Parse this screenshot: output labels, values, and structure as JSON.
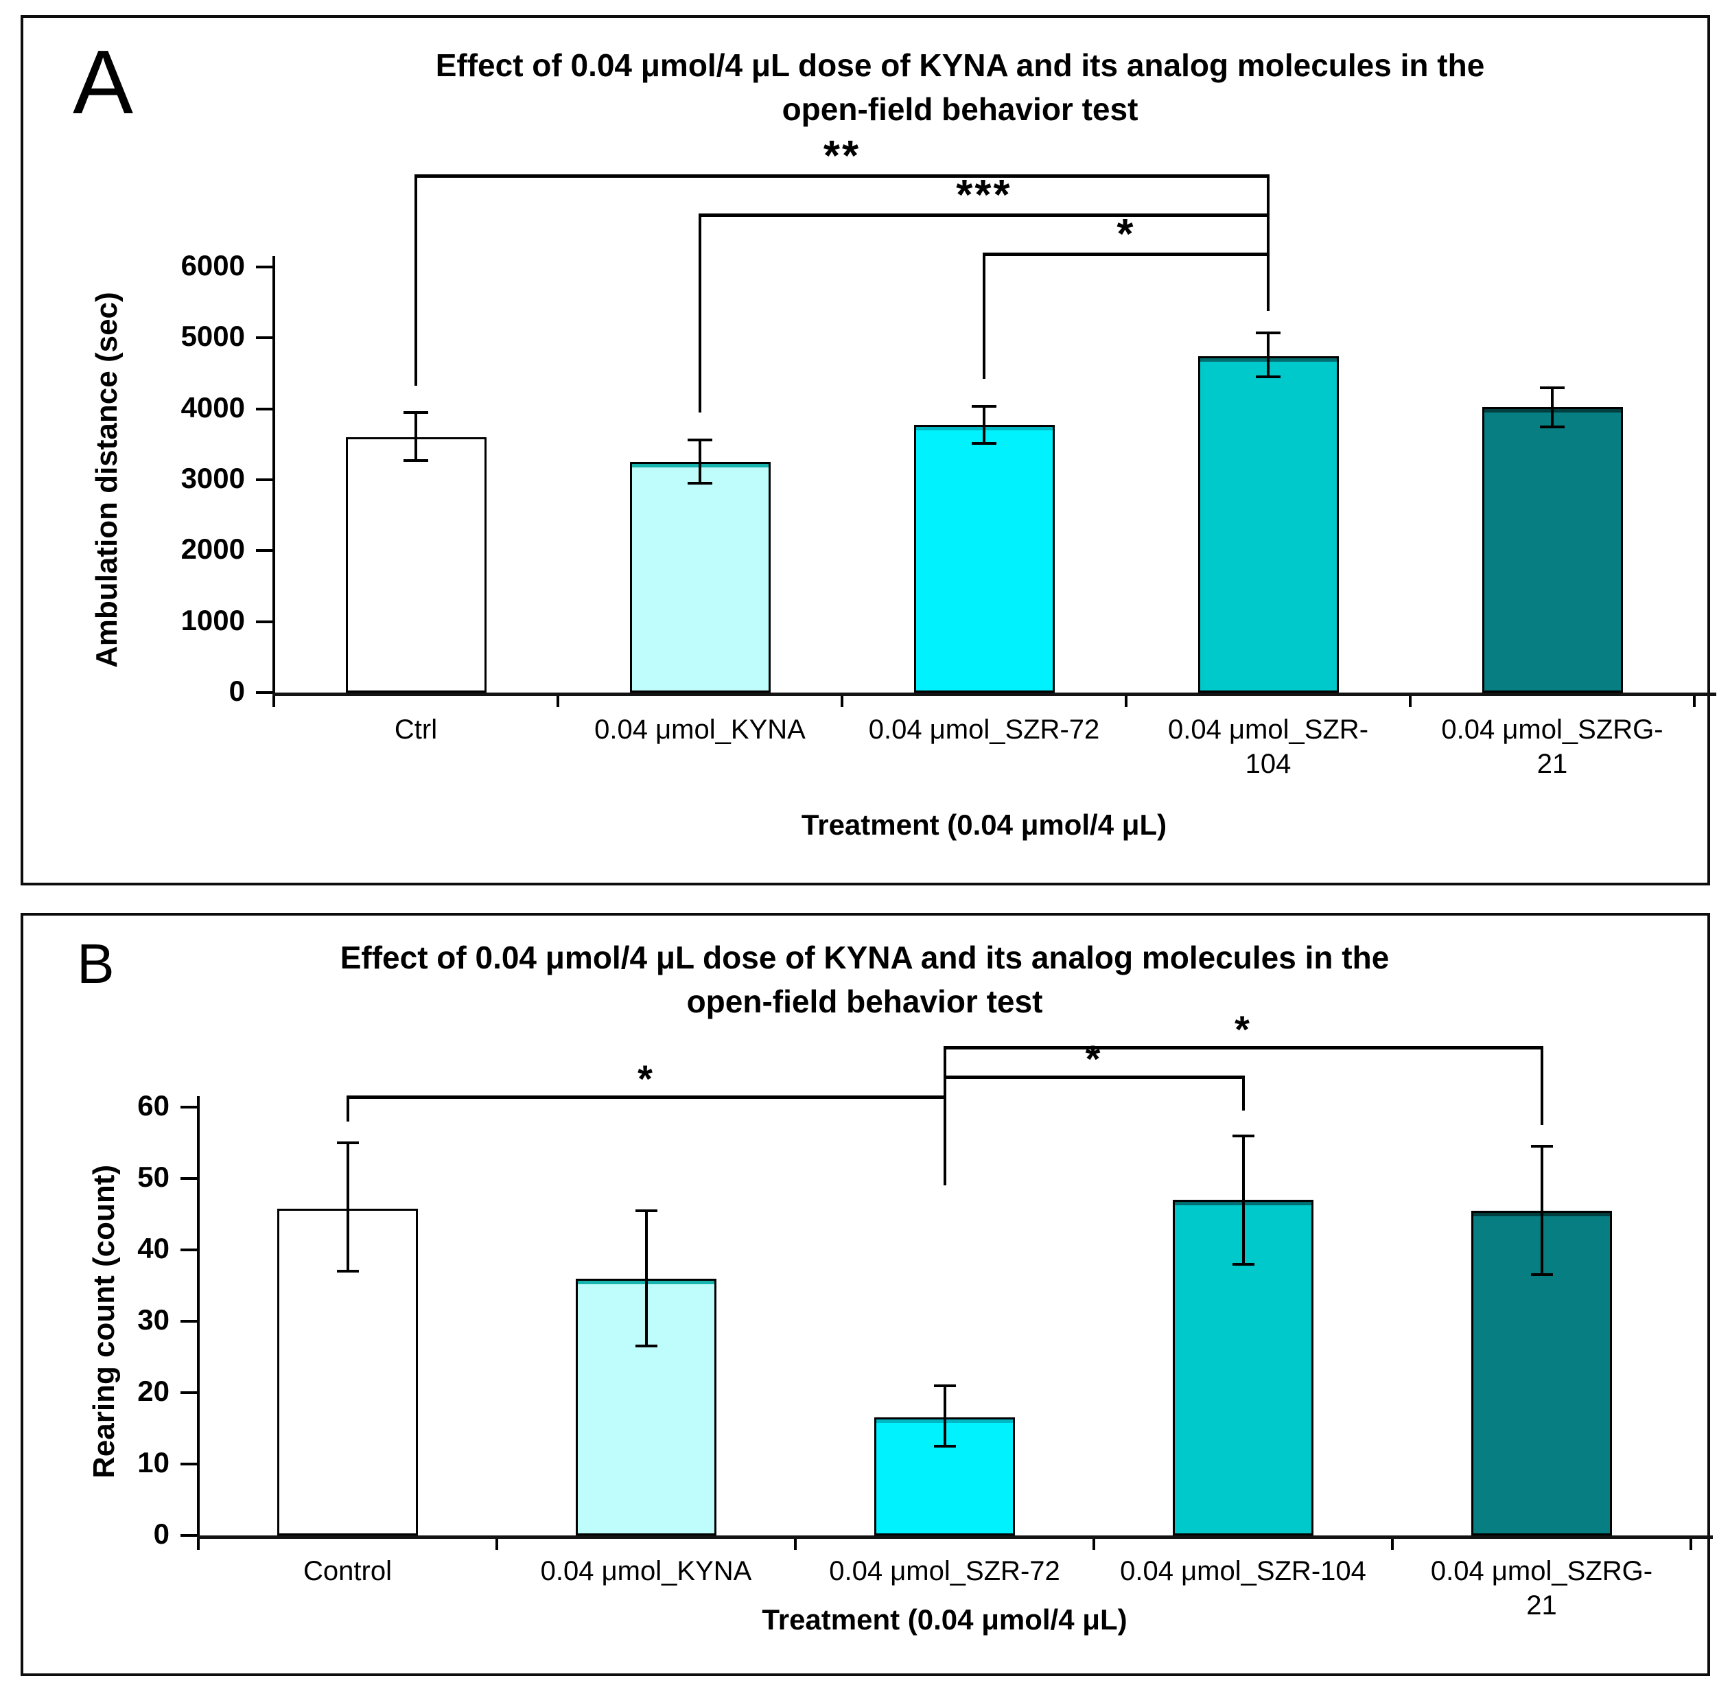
{
  "figure": {
    "background": "#FFFFFF",
    "border_color": "#0D0D0D",
    "bar_outline_color": "#000000",
    "error_bar_color": "#000000",
    "bracket_color": "#000000"
  },
  "chart_data": [
    {
      "panel_label": "A",
      "type": "bar",
      "title": "Effect of 0.04 μmol/4 μL dose of KYNA and its analog molecules in the open-field behavior test",
      "title_lines": [
        "Effect of 0.04 μmol/4 μL dose of KYNA and its analog molecules in the",
        "open-field behavior test"
      ],
      "xlabel": "Treatment (0.04 μmol/4 μL)",
      "ylabel": "Ambulation distance (sec)",
      "ylim": [
        0,
        6000
      ],
      "yticks": [
        0,
        1000,
        2000,
        3000,
        4000,
        5000,
        6000
      ],
      "grid": false,
      "legend": null,
      "categories": [
        "Ctrl",
        "0.04 μmol_KYNA",
        "0.04 μmol_SZR-72",
        "0.04 μmol_SZR-104",
        "0.04 μmol_SZRG-21"
      ],
      "category_display": [
        [
          "Ctrl"
        ],
        [
          "0.04 μmol_KYNA"
        ],
        [
          "0.04 μmol_SZR-72"
        ],
        [
          "0.04 μmol_SZR-",
          "104"
        ],
        [
          "0.04 μmol_SZRG-",
          "21"
        ]
      ],
      "values": [
        3600,
        3250,
        3770,
        4740,
        4030
      ],
      "errors_low": [
        3270,
        2950,
        3510,
        4450,
        3750
      ],
      "errors_high": [
        3950,
        3560,
        4040,
        5070,
        4300
      ],
      "bar_colors": [
        "#FFFFFF",
        "#BFFCFC",
        "#00F2FF",
        "#00C9CC",
        "#077F82"
      ],
      "significance": [
        {
          "label": "**",
          "from": 0,
          "to": 3,
          "from_leg_to": 4330,
          "to_leg_to": 5380
        },
        {
          "label": "***",
          "from": 1,
          "to": 3,
          "from_leg_to": 3950,
          "to_leg_to": 5380
        },
        {
          "label": "*",
          "from": 2,
          "to": 3,
          "from_leg_to": 4420,
          "to_leg_to": 5380
        }
      ]
    },
    {
      "panel_label": "B",
      "type": "bar",
      "title": "Effect of 0.04 μmol/4 μL dose of KYNA and its analog molecules in the open-field behavior test",
      "title_lines": [
        "Effect of 0.04 μmol/4 μL dose of KYNA and its analog molecules in the",
        "open-field behavior test"
      ],
      "xlabel": "Treatment (0.04 μmol/4 μL)",
      "ylabel": "Rearing count (count)",
      "ylim": [
        0,
        60
      ],
      "yticks": [
        0,
        10,
        20,
        30,
        40,
        50,
        60
      ],
      "grid": false,
      "legend": null,
      "categories": [
        "Control",
        "0.04 μmol_KYNA",
        "0.04 μmol_SZR-72",
        "0.04 μmol_SZR-104",
        "0.04 μmol_SZRG-21"
      ],
      "category_display": [
        [
          "Control"
        ],
        [
          "0.04 μmol_KYNA"
        ],
        [
          "0.04 μmol_SZR-72"
        ],
        [
          "0.04 μmol_SZR-104"
        ],
        [
          "0.04 μmol_SZRG-",
          "21"
        ]
      ],
      "values": [
        45.8,
        36,
        16.5,
        47,
        45.5
      ],
      "errors_low": [
        37,
        26.5,
        12.5,
        38,
        36.5
      ],
      "errors_high": [
        55,
        45.5,
        21,
        56,
        54.5
      ],
      "bar_colors": [
        "#FFFFFF",
        "#BFFCFC",
        "#00F2FF",
        "#00C9CC",
        "#077F82"
      ],
      "significance": [
        {
          "label": "*",
          "from": 2,
          "to": 4,
          "from_leg_to": 49,
          "to_leg_to": 57.5
        },
        {
          "label": "*",
          "from": 2,
          "to": 3,
          "from_leg_to": 49,
          "to_leg_to": 59.5
        },
        {
          "label": "*",
          "from": 0,
          "to": 2,
          "from_leg_to": 58,
          "to_leg_to": 49
        }
      ]
    }
  ]
}
